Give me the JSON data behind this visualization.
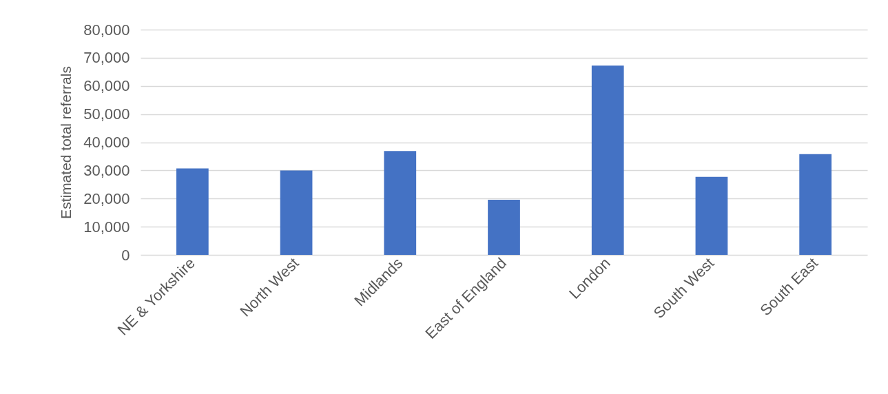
{
  "chart_data": {
    "type": "bar",
    "ylabel": "Estimated total referrals",
    "categories": [
      "NE & Yorkshire",
      "North West",
      "Midlands",
      "East of England",
      "London",
      "South West",
      "South East"
    ],
    "values": [
      30700,
      30000,
      36900,
      19600,
      67200,
      27700,
      35800
    ],
    "color": "#4472c4",
    "ylim": [
      0,
      80000
    ],
    "yticks": [
      {
        "value": 0,
        "label": "0"
      },
      {
        "value": 10000,
        "label": "10,000"
      },
      {
        "value": 20000,
        "label": "20,000"
      },
      {
        "value": 30000,
        "label": "30,000"
      },
      {
        "value": 40000,
        "label": "40,000"
      },
      {
        "value": 50000,
        "label": "50,000"
      },
      {
        "value": 60000,
        "label": "60,000"
      },
      {
        "value": 70000,
        "label": "70,000"
      },
      {
        "value": 80000,
        "label": "80,000"
      }
    ],
    "grid": "y"
  }
}
